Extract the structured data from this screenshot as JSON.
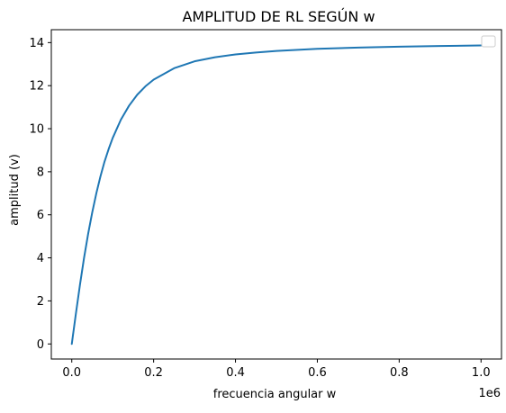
{
  "chart_data": {
    "type": "line",
    "title": "AMPLITUD DE RL SEGÚN w",
    "xlabel": "frecuencia angular w",
    "ylabel": "amplitud (v)",
    "x_offset_label": "1e6",
    "xlim": [
      -50000,
      1050000
    ],
    "ylim": [
      -0.7,
      14.6
    ],
    "xticks": [
      0,
      200000,
      400000,
      600000,
      800000,
      1000000
    ],
    "xtick_labels": [
      "0.0",
      "0.2",
      "0.4",
      "0.6",
      "0.8",
      "1.0"
    ],
    "yticks": [
      0,
      2,
      4,
      6,
      8,
      10,
      12,
      14
    ],
    "ytick_labels": [
      "0",
      "2",
      "4",
      "6",
      "8",
      "10",
      "12",
      "14"
    ],
    "grid": false,
    "legend": {
      "placement": "top-right",
      "entries": []
    },
    "line_color": "#1f77b4",
    "series": [
      {
        "x": [
          0,
          10000,
          20000,
          30000,
          40000,
          50000,
          60000,
          70000,
          80000,
          90000,
          100000,
          120000,
          140000,
          160000,
          180000,
          200000,
          250000,
          300000,
          350000,
          400000,
          450000,
          500000,
          600000,
          700000,
          800000,
          900000,
          1000000
        ],
        "values": [
          0,
          1.4,
          2.75,
          4.0,
          5.12,
          6.11,
          7.0,
          7.78,
          8.47,
          9.05,
          9.57,
          10.42,
          11.07,
          11.58,
          11.97,
          12.28,
          12.81,
          13.13,
          13.32,
          13.45,
          13.54,
          13.61,
          13.71,
          13.77,
          13.81,
          13.84,
          13.87
        ]
      }
    ]
  }
}
